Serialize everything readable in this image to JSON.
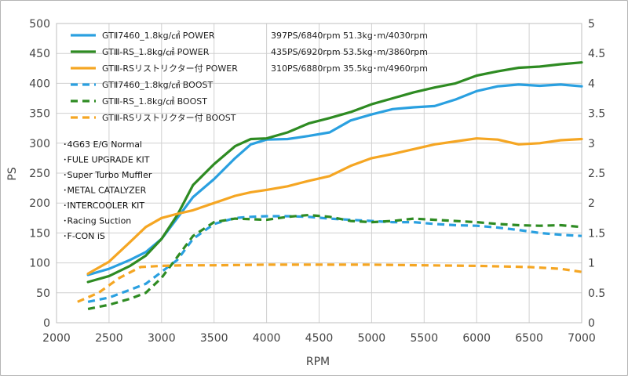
{
  "chart_data": {
    "type": "line",
    "xlabel": "RPM",
    "ylabel": "PS",
    "xlim": [
      2000,
      7000
    ],
    "ylim_left": [
      0,
      500
    ],
    "ylim_right": [
      0,
      5
    ],
    "x_ticks": [
      "2000",
      "2500",
      "3000",
      "3500",
      "4000",
      "4500",
      "5000",
      "5500",
      "6000",
      "6500",
      "7000"
    ],
    "y_ticks_left": [
      "0",
      "50",
      "100",
      "150",
      "200",
      "250",
      "300",
      "350",
      "400",
      "450",
      "500"
    ],
    "y_ticks_right": [
      "0",
      "0.5",
      "1",
      "1.5",
      "2",
      "2.5",
      "3",
      "3.5",
      "4",
      "4.5",
      "5"
    ],
    "grid": true,
    "legend_position": "top-left",
    "series": [
      {
        "name": "GTⅡ7460_1.8kg/㎠ POWER",
        "stats": "397PS/6840rpm 51.3kg･m/4030rpm",
        "color": "#2aa0e0",
        "dashed": false,
        "axis": "left",
        "x": [
          2300,
          2500,
          2700,
          2850,
          3000,
          3150,
          3300,
          3500,
          3700,
          3850,
          4000,
          4200,
          4400,
          4600,
          4800,
          5000,
          5200,
          5400,
          5600,
          5800,
          6000,
          6200,
          6400,
          6600,
          6800,
          7000
        ],
        "y": [
          80,
          90,
          105,
          118,
          140,
          175,
          210,
          240,
          275,
          298,
          306,
          307,
          312,
          318,
          338,
          348,
          357,
          360,
          362,
          373,
          387,
          395,
          398,
          396,
          398,
          395
        ]
      },
      {
        "name": "GTⅢ-RS_1.8kg/㎠ POWER",
        "stats": "435PS/6920rpm 53.5kg･m/3860rpm",
        "color": "#2e8b22",
        "dashed": false,
        "axis": "left",
        "x": [
          2300,
          2500,
          2700,
          2850,
          3000,
          3150,
          3300,
          3500,
          3700,
          3850,
          4000,
          4200,
          4400,
          4600,
          4800,
          5000,
          5200,
          5400,
          5600,
          5800,
          6000,
          6200,
          6400,
          6600,
          6800,
          7000
        ],
        "y": [
          68,
          78,
          95,
          112,
          140,
          180,
          230,
          265,
          295,
          307,
          308,
          318,
          333,
          342,
          352,
          365,
          375,
          385,
          393,
          400,
          413,
          420,
          426,
          428,
          432,
          435
        ]
      },
      {
        "name": "GTⅢ-RSリストリクター付 POWER",
        "stats": "310PS/6880rpm 35.5kg･m/4960rpm",
        "color": "#f5a623",
        "dashed": false,
        "axis": "left",
        "x": [
          2300,
          2500,
          2700,
          2850,
          3000,
          3150,
          3300,
          3500,
          3700,
          3850,
          4000,
          4200,
          4400,
          4600,
          4800,
          5000,
          5200,
          5400,
          5600,
          5800,
          6000,
          6200,
          6400,
          6600,
          6800,
          7000
        ],
        "y": [
          82,
          102,
          135,
          160,
          175,
          182,
          188,
          200,
          212,
          218,
          222,
          228,
          237,
          245,
          262,
          275,
          282,
          290,
          298,
          303,
          308,
          306,
          298,
          300,
          305,
          307
        ]
      },
      {
        "name": "GTⅡ7460_1.8kg/㎠ BOOST",
        "color": "#2aa0e0",
        "dashed": true,
        "axis": "right",
        "x": [
          2300,
          2500,
          2700,
          2850,
          3000,
          3150,
          3300,
          3500,
          3700,
          3850,
          4000,
          4200,
          4400,
          4600,
          4800,
          5000,
          5200,
          5400,
          5600,
          5800,
          6000,
          6200,
          6400,
          6600,
          6800,
          7000
        ],
        "y": [
          0.35,
          0.42,
          0.55,
          0.65,
          0.85,
          1.05,
          1.4,
          1.65,
          1.75,
          1.77,
          1.78,
          1.78,
          1.77,
          1.74,
          1.72,
          1.7,
          1.68,
          1.68,
          1.65,
          1.63,
          1.62,
          1.59,
          1.55,
          1.5,
          1.47,
          1.45
        ]
      },
      {
        "name": "GTⅢ-RS_1.8kg/㎠ BOOST",
        "color": "#2e8b22",
        "dashed": true,
        "axis": "right",
        "x": [
          2300,
          2500,
          2700,
          2850,
          3000,
          3150,
          3300,
          3500,
          3700,
          3850,
          4000,
          4200,
          4400,
          4600,
          4800,
          5000,
          5200,
          5400,
          5600,
          5800,
          6000,
          6200,
          6400,
          6600,
          6800,
          7000
        ],
        "y": [
          0.23,
          0.3,
          0.4,
          0.5,
          0.75,
          1.1,
          1.45,
          1.68,
          1.74,
          1.73,
          1.72,
          1.77,
          1.8,
          1.77,
          1.7,
          1.68,
          1.7,
          1.74,
          1.72,
          1.7,
          1.68,
          1.65,
          1.63,
          1.62,
          1.63,
          1.6
        ]
      },
      {
        "name": "GTⅢ-RSリストリクター付 BOOST",
        "color": "#f5a623",
        "dashed": true,
        "axis": "right",
        "x": [
          2200,
          2400,
          2600,
          2800,
          3000,
          3200,
          3500,
          4000,
          4500,
          5000,
          5500,
          6000,
          6500,
          6800,
          7000
        ],
        "y": [
          0.35,
          0.5,
          0.75,
          0.93,
          0.95,
          0.96,
          0.96,
          0.97,
          0.97,
          0.97,
          0.96,
          0.95,
          0.93,
          0.9,
          0.85
        ]
      }
    ],
    "annotations": [
      "･4G63 E/G Normal",
      "･FULE UPGRADE KIT",
      "･Super Turbo Muffler",
      "･METAL CATALYZER",
      "･INTERCOOLER KIT",
      "･Racing Suction",
      "･F-CON iS"
    ]
  }
}
